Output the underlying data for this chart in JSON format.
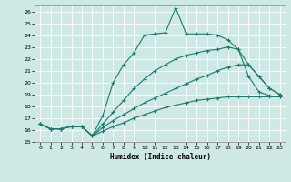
{
  "background_color": "#cde8e5",
  "grid_color": "#b0d4d0",
  "line_color": "#1a7a6e",
  "xlabel": "Humidex (Indice chaleur)",
  "xlim": [
    0,
    23
  ],
  "ylim": [
    15,
    26.5
  ],
  "yticks": [
    15,
    16,
    17,
    18,
    19,
    20,
    21,
    22,
    23,
    24,
    25,
    26
  ],
  "xticks": [
    0,
    1,
    2,
    3,
    4,
    5,
    6,
    7,
    8,
    9,
    10,
    11,
    12,
    13,
    14,
    15,
    16,
    17,
    18,
    19,
    20,
    21,
    22,
    23
  ],
  "lines": [
    {
      "x": [
        0,
        1,
        2,
        3,
        4,
        5,
        6,
        7,
        8,
        9,
        10,
        11,
        12,
        13,
        14,
        15,
        16,
        17,
        18,
        19,
        20,
        21,
        22,
        23
      ],
      "y": [
        16.5,
        16.1,
        16.1,
        16.3,
        16.3,
        15.5,
        17.2,
        20.0,
        21.5,
        22.5,
        24.0,
        24.1,
        24.2,
        26.3,
        24.1,
        24.1,
        24.1,
        24.0,
        23.6,
        22.8,
        20.5,
        19.2,
        18.9,
        18.8
      ]
    },
    {
      "x": [
        0,
        1,
        2,
        3,
        4,
        5,
        6,
        7,
        8,
        9,
        10,
        11,
        12,
        13,
        14,
        15,
        16,
        17,
        18,
        19,
        20,
        21,
        22,
        23
      ],
      "y": [
        16.5,
        16.1,
        16.1,
        16.3,
        16.3,
        15.5,
        16.5,
        17.5,
        18.5,
        19.5,
        20.3,
        21.0,
        21.5,
        22.0,
        22.3,
        22.5,
        22.7,
        22.8,
        23.0,
        22.8,
        21.5,
        20.5,
        19.5,
        19.0
      ]
    },
    {
      "x": [
        0,
        1,
        2,
        3,
        4,
        5,
        6,
        7,
        8,
        9,
        10,
        11,
        12,
        13,
        14,
        15,
        16,
        17,
        18,
        19,
        20,
        21,
        22,
        23
      ],
      "y": [
        16.5,
        16.1,
        16.1,
        16.3,
        16.3,
        15.5,
        16.2,
        16.8,
        17.3,
        17.8,
        18.3,
        18.7,
        19.1,
        19.5,
        19.9,
        20.3,
        20.6,
        21.0,
        21.3,
        21.5,
        21.5,
        20.5,
        19.5,
        19.0
      ]
    },
    {
      "x": [
        0,
        1,
        2,
        3,
        4,
        5,
        6,
        7,
        8,
        9,
        10,
        11,
        12,
        13,
        14,
        15,
        16,
        17,
        18,
        19,
        20,
        21,
        22,
        23
      ],
      "y": [
        16.5,
        16.1,
        16.1,
        16.3,
        16.3,
        15.5,
        15.9,
        16.3,
        16.6,
        17.0,
        17.3,
        17.6,
        17.9,
        18.1,
        18.3,
        18.5,
        18.6,
        18.7,
        18.8,
        18.8,
        18.8,
        18.8,
        18.8,
        18.8
      ]
    }
  ]
}
